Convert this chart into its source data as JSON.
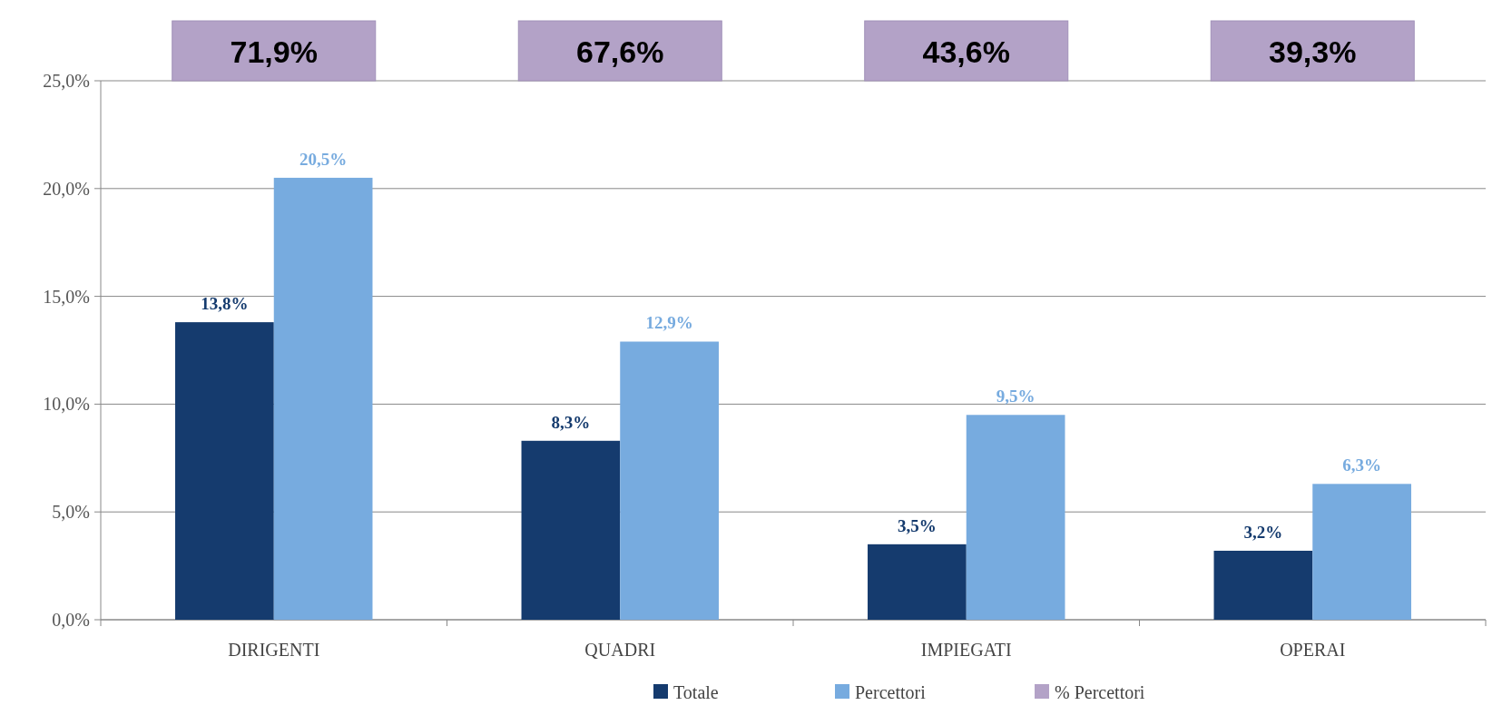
{
  "chart_data": {
    "type": "bar",
    "categories": [
      "DIRIGENTI",
      "QUADRI",
      "IMPIEGATI",
      "OPERAI"
    ],
    "series": [
      {
        "name": "Totale",
        "color": "#153b6e",
        "values": [
          13.8,
          8.3,
          3.5,
          3.2
        ],
        "value_labels": [
          "13,8%",
          "8,3%",
          "3,5%",
          "3,2%"
        ]
      },
      {
        "name": "Percettori",
        "color": "#77abdf",
        "values": [
          20.5,
          12.9,
          9.5,
          6.3
        ],
        "value_labels": [
          "20,5%",
          "12,9%",
          "9,5%",
          "6,3%"
        ]
      },
      {
        "name": "% Percettori",
        "type": "other",
        "color": "#b3a2c7",
        "values": [
          null,
          null,
          null,
          null
        ],
        "value_labels": [
          "71,9%",
          "67,6%",
          "43,6%",
          "39,3%"
        ]
      }
    ],
    "ylim": [
      0,
      25
    ],
    "yticks": [
      {
        "value": 0,
        "label": "0,0%"
      },
      {
        "value": 5,
        "label": "5,0%"
      },
      {
        "value": 10,
        "label": "10,0%"
      },
      {
        "value": 15,
        "label": "15,0%"
      },
      {
        "value": 20,
        "label": "20,0%"
      },
      {
        "value": 25,
        "label": "25,0%"
      }
    ],
    "grid": "y",
    "legend": "bottom"
  }
}
